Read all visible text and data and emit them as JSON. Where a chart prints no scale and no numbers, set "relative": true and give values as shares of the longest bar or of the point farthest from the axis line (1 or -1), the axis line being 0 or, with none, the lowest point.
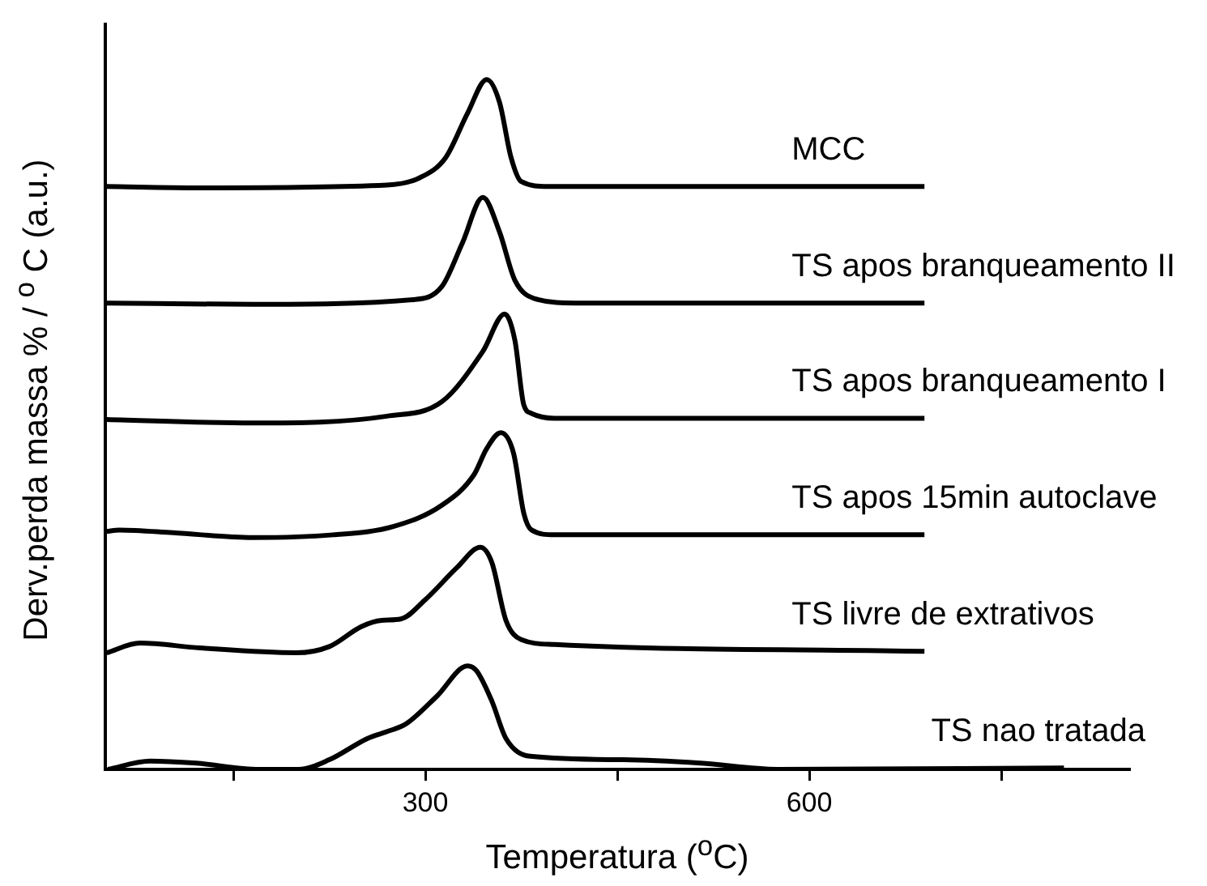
{
  "chart_data": {
    "type": "line",
    "relative": true,
    "xlabel": "Temperatura ($^{o}$C)",
    "ylabel": "Derv.perda massa % / $^{o}$ C (a.u.)",
    "xlim": [
      50,
      850
    ],
    "xticks": [
      {
        "value": 150,
        "label": null
      },
      300,
      {
        "value": 450,
        "label": null
      },
      600,
      {
        "value": 750,
        "label": null
      }
    ],
    "grid": false,
    "legend": false,
    "marker": "none",
    "line_style": "solid",
    "series": [
      {
        "name": "MCC",
        "color": "#000000",
        "x": [
          51,
          124,
          270,
          295,
          316,
          333,
          348,
          358,
          367,
          375,
          396,
          690
        ],
        "values": [
          0.845,
          0.843,
          0.847,
          0.857,
          0.887,
          0.951,
          1,
          0.967,
          0.887,
          0.852,
          0.845,
          0.845
        ]
      },
      {
        "name": "TS apos branqueamento II",
        "color": "#000000",
        "x": [
          51,
          165,
          291,
          313,
          329,
          345,
          358,
          370,
          388,
          417,
          690
        ],
        "values": [
          0.676,
          0.674,
          0.681,
          0.7,
          0.763,
          0.829,
          0.779,
          0.709,
          0.681,
          0.676,
          0.676
        ]
      },
      {
        "name": "TS apos branqueamento I",
        "color": "#000000",
        "x": [
          51,
          165,
          270,
          313,
          345,
          362,
          370,
          377,
          383,
          401,
          690
        ],
        "values": [
          0.507,
          0.502,
          0.512,
          0.533,
          0.606,
          0.66,
          0.622,
          0.528,
          0.516,
          0.509,
          0.509
        ]
      },
      {
        "name": "TS apos 15min autoclave",
        "color": "#000000",
        "x": [
          51,
          61,
          103,
          165,
          228,
          275,
          313,
          338,
          348,
          359,
          369,
          377,
          383,
          401,
          690
        ],
        "values": [
          0.345,
          0.347,
          0.343,
          0.336,
          0.34,
          0.352,
          0.383,
          0.427,
          0.465,
          0.488,
          0.458,
          0.371,
          0.347,
          0.34,
          0.34
        ]
      },
      {
        "name": "TS livre de extrativos",
        "color": "#000000",
        "x": [
          51,
          77,
          124,
          199,
          225,
          250,
          266,
          281,
          300,
          325,
          343,
          352,
          363,
          375,
          401,
          690
        ],
        "values": [
          0.169,
          0.183,
          0.176,
          0.169,
          0.178,
          0.207,
          0.216,
          0.218,
          0.246,
          0.293,
          0.322,
          0.3,
          0.216,
          0.188,
          0.181,
          0.171
        ]
      },
      {
        "name": "TS nao tratada",
        "color": "#000000",
        "x": [
          52,
          85,
          121,
          170,
          201,
          225,
          255,
          272,
          285,
          309,
          333,
          340,
          352,
          363,
          382,
          455,
          515,
          575,
          799
        ],
        "values": [
          0,
          0.012,
          0.009,
          0,
          0,
          0.014,
          0.045,
          0.056,
          0.066,
          0.106,
          0.15,
          0.143,
          0.099,
          0.045,
          0.019,
          0.014,
          0.009,
          0,
          0.002
        ]
      }
    ]
  }
}
